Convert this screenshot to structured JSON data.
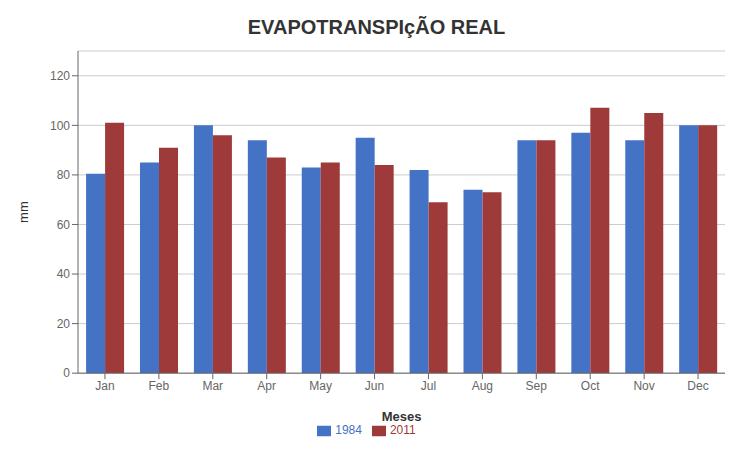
{
  "chart_data": {
    "type": "bar",
    "title": "EVAPOTRANSPIçÃO REAL",
    "xlabel": "Meses",
    "ylabel": "mm",
    "categories": [
      "Jan",
      "Feb",
      "Mar",
      "Apr",
      "May",
      "Jun",
      "Jul",
      "Aug",
      "Sep",
      "Oct",
      "Nov",
      "Dec"
    ],
    "series": [
      {
        "name": "1984",
        "color": "#4472C4",
        "values": [
          80.5,
          85,
          100,
          94,
          83,
          95,
          82,
          74,
          94,
          97,
          94,
          100.05
        ]
      },
      {
        "name": "2011",
        "color": "#9E3A3A",
        "values": [
          101,
          91,
          96,
          87,
          85,
          84,
          69,
          73,
          94,
          107.13,
          105,
          100
        ]
      }
    ],
    "ylim": [
      0,
      130
    ],
    "yticks": [
      0,
      20,
      40,
      60,
      80,
      100,
      120
    ],
    "grid": true,
    "legend": "bottom"
  }
}
